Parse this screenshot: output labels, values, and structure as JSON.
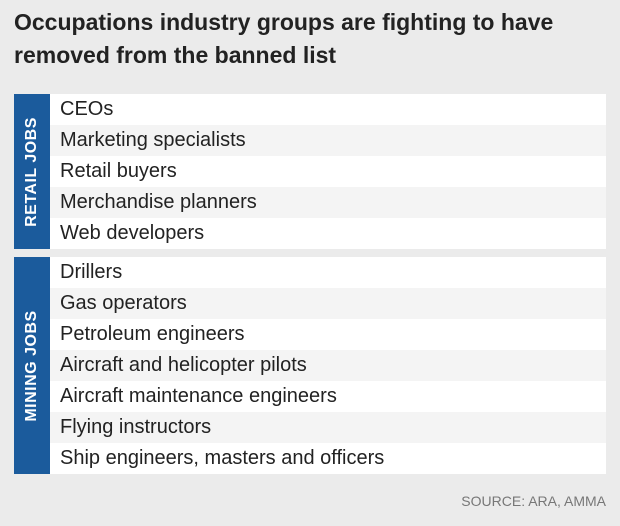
{
  "title": "Occupations industry groups are fighting to have removed from the banned list",
  "groups": [
    {
      "label": "RETAIL JOBS",
      "items": [
        "CEOs",
        "Marketing specialists",
        "Retail buyers",
        "Merchandise planners",
        "Web developers"
      ]
    },
    {
      "label": "MINING JOBS",
      "items": [
        "Drillers",
        "Gas operators",
        "Petroleum engineers",
        "Aircraft and helicopter pilots",
        "Aircraft maintenance engineers",
        "Flying instructors",
        "Ship engineers, masters and officers"
      ]
    }
  ],
  "source": "SOURCE: ARA, AMMA"
}
